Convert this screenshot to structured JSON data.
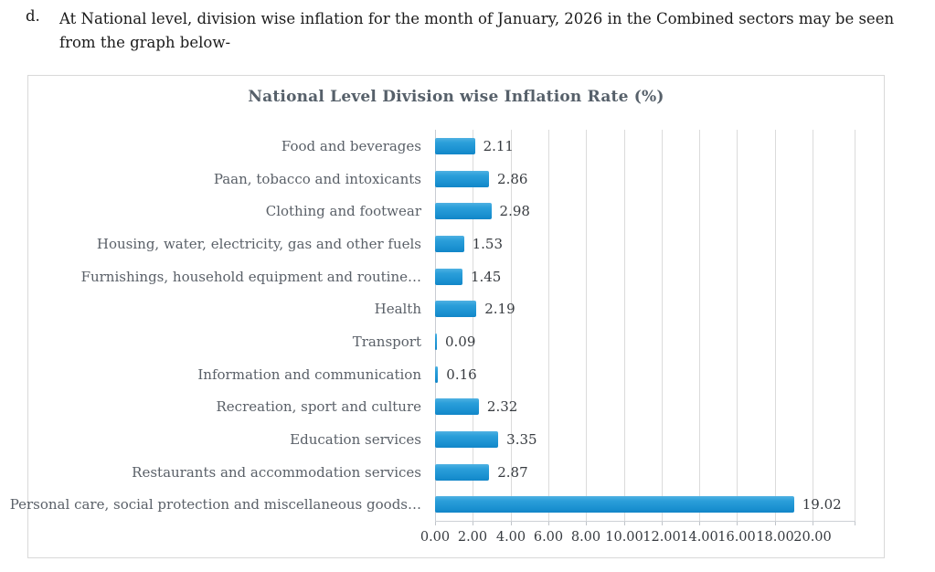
{
  "page": {
    "list_marker": "d.",
    "paragraph": "At National level, division wise inflation for the month of January, 2026 in the Combined sectors may be seen from the graph below-"
  },
  "chart_data": {
    "type": "bar",
    "orientation": "horizontal",
    "title": "National Level Division wise Inflation Rate (%)",
    "categories": [
      "Food and beverages",
      "Paan, tobacco and intoxicants",
      "Clothing and footwear",
      "Housing, water, electricity, gas and other fuels",
      "Furnishings, household equipment and routine…",
      "Health",
      "Transport",
      "Information and communication",
      "Recreation, sport and culture",
      "Education services",
      "Restaurants and accommodation services",
      "Personal care, social protection and miscellaneous goods…"
    ],
    "values": [
      2.11,
      2.86,
      2.98,
      1.53,
      1.45,
      2.19,
      0.09,
      0.16,
      2.32,
      3.35,
      2.87,
      19.02
    ],
    "value_labels": [
      "2.11",
      "2.86",
      "2.98",
      "1.53",
      "1.45",
      "2.19",
      "0.09",
      "0.16",
      "2.32",
      "3.35",
      "2.87",
      "19.02"
    ],
    "x_ticks": [
      "0.00",
      "2.00",
      "4.00",
      "6.00",
      "8.00",
      "10.00",
      "12.00",
      "14.00",
      "16.00",
      "18.00",
      "20.00"
    ],
    "xlim": [
      0,
      20
    ],
    "grid": true,
    "legend": false,
    "bar_color": "#1E97D4",
    "gridline_color": "#DBDBDB",
    "axis_color": "#C8CCD2",
    "title_color": "#56606A",
    "category_label_color": "#5A6068",
    "value_label_color": "#373B40",
    "chart_border_color": "#D9D9D9"
  }
}
